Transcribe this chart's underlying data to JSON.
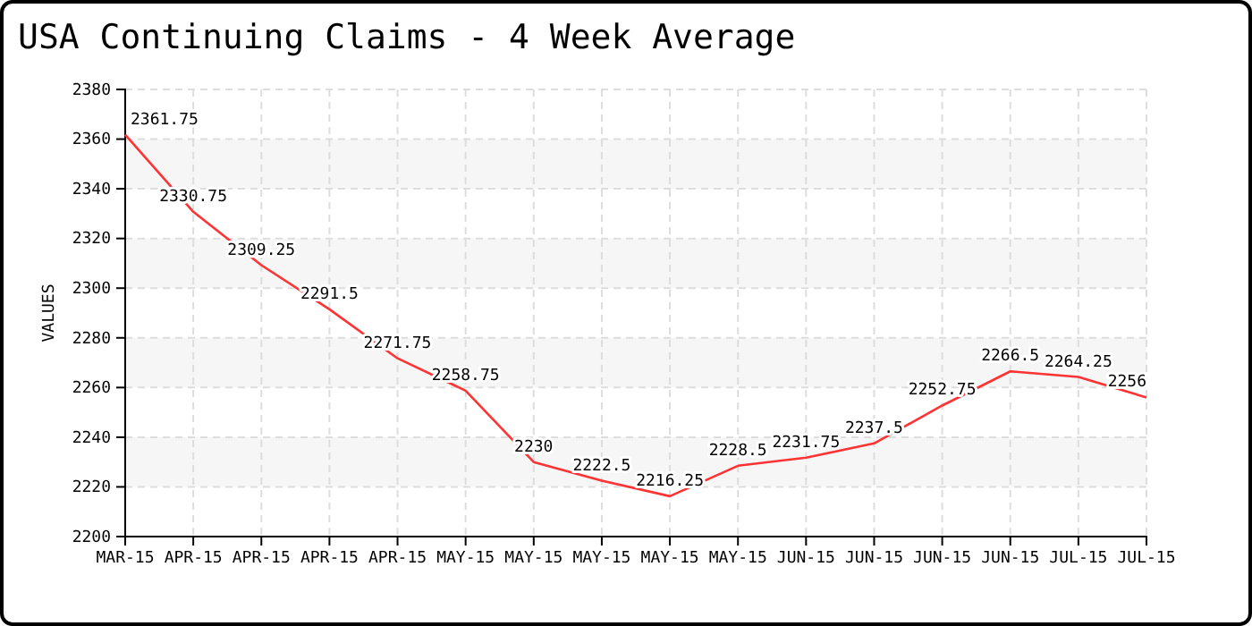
{
  "chart_data": {
    "type": "line",
    "title": "USA Continuing Claims - 4 Week Average",
    "ylabel": "VALUES",
    "categories": [
      "MAR-15",
      "APR-15",
      "APR-15",
      "APR-15",
      "APR-15",
      "MAY-15",
      "MAY-15",
      "MAY-15",
      "MAY-15",
      "MAY-15",
      "JUN-15",
      "JUN-15",
      "JUN-15",
      "JUN-15",
      "JUL-15",
      "JUL-15"
    ],
    "series": [
      {
        "color": "#ff3333",
        "values": [
          2361.75,
          2330.75,
          2309.25,
          2291.5,
          2271.75,
          2258.75,
          2230,
          2222.5,
          2216.25,
          2228.5,
          2231.75,
          2237.5,
          2252.75,
          2266.5,
          2264.25,
          2256
        ]
      }
    ],
    "ylim": [
      2200,
      2380
    ],
    "yticks": [
      2200,
      2220,
      2240,
      2260,
      2280,
      2300,
      2320,
      2340,
      2360,
      2380
    ],
    "grid": true,
    "data_labels": true,
    "marker": "none",
    "line_style": "solid"
  }
}
